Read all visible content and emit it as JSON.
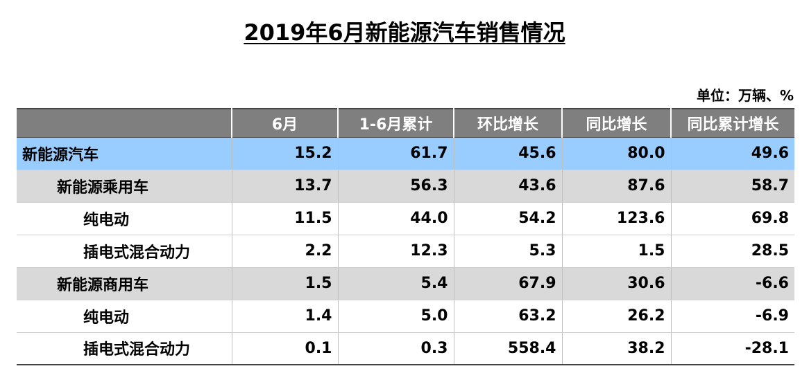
{
  "title": "2019年6月新能源汽车销售情况",
  "unit": "单位：万辆、%",
  "table": {
    "headers": [
      "",
      "6月",
      "1-6月累计",
      "环比增长",
      "同比增长",
      "同比累计增长"
    ],
    "rows": [
      {
        "level": 0,
        "cells": [
          "新能源汽车",
          "15.2",
          "61.7",
          "45.6",
          "80.0",
          "49.6"
        ]
      },
      {
        "level": 1,
        "cells": [
          "新能源乘用车",
          "13.7",
          "56.3",
          "43.6",
          "87.6",
          "58.7"
        ]
      },
      {
        "level": 2,
        "cells": [
          "纯电动",
          "11.5",
          "44.0",
          "54.2",
          "123.6",
          "69.8"
        ]
      },
      {
        "level": 2,
        "cells": [
          "插电式混合动力",
          "2.2",
          "12.3",
          "5.3",
          "1.5",
          "28.5"
        ]
      },
      {
        "level": 1,
        "cells": [
          "新能源商用车",
          "1.5",
          "5.4",
          "67.9",
          "30.6",
          "-6.6"
        ]
      },
      {
        "level": 2,
        "cells": [
          "纯电动",
          "1.4",
          "5.0",
          "63.2",
          "26.2",
          "-6.9"
        ]
      },
      {
        "level": 2,
        "cells": [
          "插电式混合动力",
          "0.1",
          "0.3",
          "558.4",
          "38.2",
          "-28.1"
        ]
      }
    ]
  },
  "colors": {
    "header_bg": "#7f7f7f",
    "total_row_bg": "#99ccff",
    "category_row_bg": "#d9d9d9",
    "subtype_row_bg": "#ffffff"
  }
}
